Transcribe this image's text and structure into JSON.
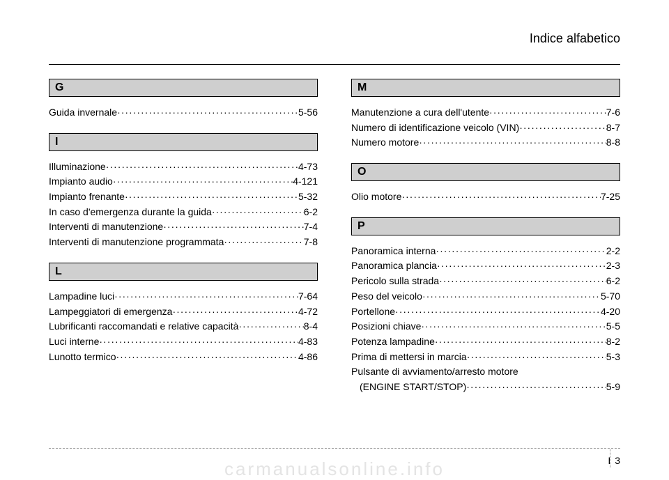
{
  "header": {
    "title": "Indice alfabetico"
  },
  "footer": {
    "section": "I",
    "page": "3"
  },
  "watermark": "carmanualsonline.info",
  "left": [
    {
      "letter": "G",
      "entries": [
        {
          "label": "Guida invernale",
          "page": "5-56"
        }
      ]
    },
    {
      "letter": "I",
      "entries": [
        {
          "label": "Illuminazione",
          "page": "4-73"
        },
        {
          "label": "Impianto audio",
          "page": "4-121"
        },
        {
          "label": "Impianto frenante",
          "page": "5-32"
        },
        {
          "label": "In caso d'emergenza durante la guida",
          "page": "6-2"
        },
        {
          "label": "Interventi di manutenzione",
          "page": "7-4"
        },
        {
          "label": "Interventi di manutenzione programmata",
          "page": "7-8"
        }
      ]
    },
    {
      "letter": "L",
      "entries": [
        {
          "label": "Lampadine luci",
          "page": "7-64"
        },
        {
          "label": "Lampeggiatori di emergenza",
          "page": "4-72"
        },
        {
          "label": "Lubrificanti raccomandati e relative capacità",
          "page": "8-4"
        },
        {
          "label": "Luci interne",
          "page": "4-83"
        },
        {
          "label": "Lunotto termico",
          "page": "4-86"
        }
      ]
    }
  ],
  "right": [
    {
      "letter": "M",
      "entries": [
        {
          "label": "Manutenzione a cura dell'utente",
          "page": "7-6"
        },
        {
          "label": "Numero di identificazione veicolo (VIN)",
          "page": "8-7"
        },
        {
          "label": "Numero motore",
          "page": "8-8"
        }
      ]
    },
    {
      "letter": "O",
      "entries": [
        {
          "label": "Olio motore",
          "page": "7-25"
        }
      ]
    },
    {
      "letter": "P",
      "entries": [
        {
          "label": "Panoramica interna",
          "page": "2-2"
        },
        {
          "label": "Panoramica plancia",
          "page": "2-3"
        },
        {
          "label": "Pericolo sulla strada",
          "page": "6-2"
        },
        {
          "label": "Peso del veicolo",
          "page": "5-70"
        },
        {
          "label": "Portellone",
          "page": "4-20"
        },
        {
          "label": "Posizioni chiave",
          "page": "5-5"
        },
        {
          "label": "Potenza lampadine",
          "page": "8-2"
        },
        {
          "label": "Prima di mettersi in marcia",
          "page": "5-3"
        },
        {
          "label": "Pulsante di avviamento/arresto motore",
          "page": "",
          "nowrap_page": true
        },
        {
          "label": "(ENGINE START/STOP)",
          "page": "5-9",
          "sub": true
        }
      ]
    }
  ]
}
